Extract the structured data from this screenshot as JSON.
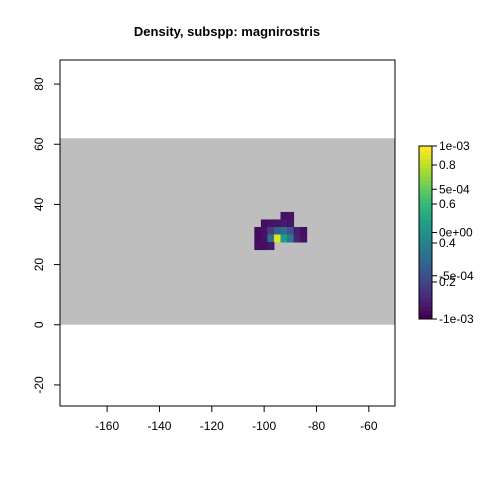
{
  "chart_data": {
    "type": "heatmap",
    "title": "Density, subspp: magnirostris",
    "xlabel": "",
    "ylabel": "",
    "xlim": [
      -178,
      -50
    ],
    "ylim": [
      -27,
      88
    ],
    "x_ticks": [
      -160,
      -140,
      -120,
      -100,
      -80,
      -60
    ],
    "y_ticks": [
      -20,
      0,
      20,
      40,
      60,
      80
    ],
    "x_tick_labels": [
      "-160",
      "-140",
      "-120",
      "-100",
      "-80",
      "-60"
    ],
    "y_tick_labels": [
      "-20",
      "0",
      "20",
      "40",
      "60",
      "80"
    ],
    "grid": false,
    "background_band": {
      "xmin": -178,
      "xmax": -50,
      "ymin": 0,
      "ymax": 62,
      "color": "#bebebe"
    },
    "cell_size": 2.5,
    "cells": [
      {
        "x": -92.5,
        "y": 36.25,
        "v": 0.05
      },
      {
        "x": -90.0,
        "y": 36.25,
        "v": 0.05
      },
      {
        "x": -95.0,
        "y": 33.75,
        "v": 0.06
      },
      {
        "x": -92.5,
        "y": 33.75,
        "v": 0.07
      },
      {
        "x": -90.0,
        "y": 33.75,
        "v": 0.06
      },
      {
        "x": -100.0,
        "y": 33.75,
        "v": 0.04
      },
      {
        "x": -97.5,
        "y": 33.75,
        "v": 0.05
      },
      {
        "x": -100.0,
        "y": 31.25,
        "v": 0.05
      },
      {
        "x": -97.5,
        "y": 31.25,
        "v": 0.18
      },
      {
        "x": -95.0,
        "y": 31.25,
        "v": 0.3
      },
      {
        "x": -92.5,
        "y": 31.25,
        "v": 0.35
      },
      {
        "x": -90.0,
        "y": 31.25,
        "v": 0.25
      },
      {
        "x": -87.5,
        "y": 31.25,
        "v": 0.08
      },
      {
        "x": -100.0,
        "y": 28.75,
        "v": 0.05
      },
      {
        "x": -97.5,
        "y": 28.75,
        "v": 0.35
      },
      {
        "x": -95.0,
        "y": 28.75,
        "v": 0.95
      },
      {
        "x": -92.5,
        "y": 28.75,
        "v": 0.55
      },
      {
        "x": -90.0,
        "y": 28.75,
        "v": 0.4
      },
      {
        "x": -87.5,
        "y": 28.75,
        "v": 0.1
      },
      {
        "x": -85.0,
        "y": 28.75,
        "v": 0.05
      },
      {
        "x": -102.5,
        "y": 28.75,
        "v": 0.03
      },
      {
        "x": -100.0,
        "y": 26.25,
        "v": 0.04
      },
      {
        "x": -97.5,
        "y": 26.25,
        "v": 0.06
      },
      {
        "x": -102.5,
        "y": 26.25,
        "v": 0.04
      },
      {
        "x": -85.0,
        "y": 31.25,
        "v": 0.04
      },
      {
        "x": -102.5,
        "y": 31.25,
        "v": 0.03
      }
    ],
    "colorbar": {
      "labels_outer": [
        "1e-03",
        "5e-04",
        "0e+00",
        "-5e-04",
        "-1e-03"
      ],
      "labels_inner": [
        "0.8",
        "0.6",
        "0.4",
        "0.2"
      ],
      "colormap": "viridis"
    }
  }
}
